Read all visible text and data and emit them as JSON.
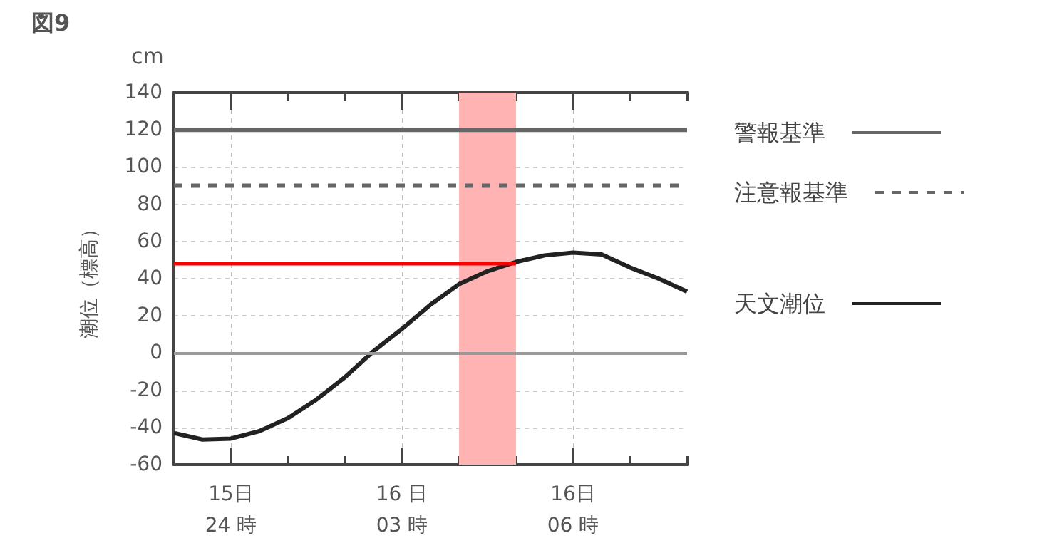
{
  "chart_data": {
    "type": "line",
    "title": "図9",
    "ylabel": "潮位（標高）",
    "annotations": [
      "cm"
    ],
    "categories": [
      null,
      null,
      "15日\n24 時",
      null,
      null,
      null,
      null,
      null,
      "16 日\n03 時",
      null,
      null,
      null,
      null,
      null,
      "16日\n06 時",
      null,
      null,
      null,
      null
    ],
    "ylim": [
      -60,
      140
    ],
    "yticks": [
      -60,
      -40,
      -20,
      0,
      20,
      40,
      60,
      80,
      100,
      120,
      140
    ],
    "grid": true,
    "legend": "right",
    "marker": "none",
    "series": [
      {
        "name": "警報基準",
        "color": "#666666",
        "line_style": "solid",
        "values": [
          120,
          120,
          120,
          120,
          120,
          120,
          120,
          120,
          120,
          120,
          120,
          120,
          120,
          120,
          120,
          120,
          120,
          120,
          120
        ]
      },
      {
        "name": "注意報基準",
        "color": "#666666",
        "line_style": "dashed",
        "values": [
          90,
          90,
          90,
          90,
          90,
          90,
          90,
          90,
          90,
          90,
          90,
          90,
          90,
          90,
          90,
          90,
          90,
          90,
          90
        ]
      },
      {
        "name": "天文潮位",
        "color": "#222222",
        "line_style": "solid",
        "values": [
          -43,
          -46.5,
          -46,
          -42,
          -35,
          -25,
          -13,
          1,
          13,
          26,
          37,
          44,
          49,
          52.5,
          54,
          53,
          46,
          40,
          33
        ]
      },
      {
        "color": "#ff0000",
        "line_style": "solid",
        "values": [
          48,
          48,
          48,
          48,
          48,
          48,
          48,
          48,
          48,
          48,
          48,
          48,
          48,
          null,
          null,
          null,
          null,
          null,
          null
        ]
      }
    ],
    "ref_lines": [
      {
        "axis": "y",
        "value": 0,
        "color": "#999999",
        "line_style": "solid"
      }
    ]
  }
}
